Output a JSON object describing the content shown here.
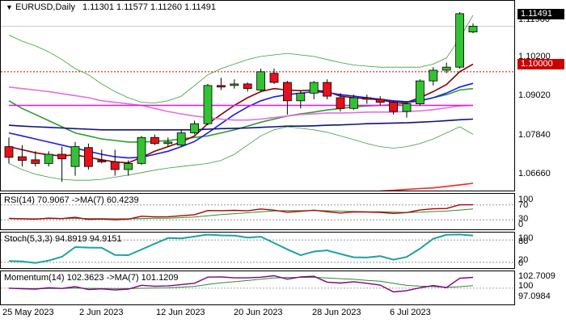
{
  "main": {
    "symbol": "EURUSD,Daily",
    "ohlc": "1.11301 1.11577 1.11260 1.11491",
    "price_axis": [
      "1.11980",
      "1.10200",
      "1.09020",
      "1.07840",
      "1.06660"
    ],
    "current_price": "1.11491",
    "level_price": "1.10000"
  },
  "rsi": {
    "label": "RSI(14) 70.9067  ->MA(7) 60.4239",
    "axis": [
      "100",
      "70",
      "30",
      "0"
    ]
  },
  "stoch": {
    "label": "Stoch(5,3,3) 94.8919 94.9151",
    "axis": [
      "100",
      "80",
      "20",
      "0"
    ]
  },
  "momentum": {
    "label": "Momentum(14) 102.3623  ->MA(7) 101.1209",
    "axis": [
      "102.7009",
      "100",
      "97.0984"
    ]
  },
  "dates": [
    "25 May 2023",
    "2 Jun 2023",
    "12 Jun 2023",
    "20 Jun 2023",
    "28 Jun 2023",
    "6 Jul 2023"
  ],
  "colors": {
    "up": "#33c233",
    "down": "#e8101a",
    "level": "#cc0000"
  },
  "chart_data": {
    "type": "candlestick",
    "title": "EURUSD,Daily",
    "ylim": [
      1.0606,
      1.1232
    ],
    "candles": [
      {
        "o": 1.0755,
        "h": 1.0785,
        "l": 1.07,
        "c": 1.072
      },
      {
        "o": 1.0722,
        "h": 1.076,
        "l": 1.069,
        "c": 1.071
      },
      {
        "o": 1.0712,
        "h": 1.074,
        "l": 1.069,
        "c": 1.07
      },
      {
        "o": 1.07,
        "h": 1.074,
        "l": 1.069,
        "c": 1.073
      },
      {
        "o": 1.073,
        "h": 1.0755,
        "l": 1.064,
        "c": 1.0715
      },
      {
        "o": 1.069,
        "h": 1.077,
        "l": 1.066,
        "c": 1.0755
      },
      {
        "o": 1.0752,
        "h": 1.0765,
        "l": 1.068,
        "c": 1.069
      },
      {
        "o": 1.071,
        "h": 1.0745,
        "l": 1.07,
        "c": 1.0705
      },
      {
        "o": 1.0705,
        "h": 1.0745,
        "l": 1.066,
        "c": 1.068
      },
      {
        "o": 1.068,
        "h": 1.071,
        "l": 1.066,
        "c": 1.07
      },
      {
        "o": 1.07,
        "h": 1.079,
        "l": 1.0695,
        "c": 1.0785
      },
      {
        "o": 1.0785,
        "h": 1.0795,
        "l": 1.076,
        "c": 1.0765
      },
      {
        "o": 1.0765,
        "h": 1.0785,
        "l": 1.0755,
        "c": 1.077
      },
      {
        "o": 1.076,
        "h": 1.081,
        "l": 1.0755,
        "c": 1.08
      },
      {
        "o": 1.08,
        "h": 1.084,
        "l": 1.0795,
        "c": 1.083
      },
      {
        "o": 1.083,
        "h": 1.096,
        "l": 1.0825,
        "c": 1.0955
      },
      {
        "o": 1.0955,
        "h": 1.098,
        "l": 1.094,
        "c": 1.095
      },
      {
        "o": 1.0955,
        "h": 1.0975,
        "l": 1.0945,
        "c": 1.096
      },
      {
        "o": 1.096,
        "h": 1.0965,
        "l": 1.0935,
        "c": 1.0945
      },
      {
        "o": 1.094,
        "h": 1.101,
        "l": 1.0935,
        "c": 1.1
      },
      {
        "o": 1.0995,
        "h": 1.101,
        "l": 1.096,
        "c": 1.0965
      },
      {
        "o": 1.0965,
        "h": 1.097,
        "l": 1.086,
        "c": 1.0905
      },
      {
        "o": 1.0905,
        "h": 1.094,
        "l": 1.088,
        "c": 1.093
      },
      {
        "o": 1.093,
        "h": 1.097,
        "l": 1.091,
        "c": 1.0965
      },
      {
        "o": 1.0965,
        "h": 1.0975,
        "l": 1.091,
        "c": 1.092
      },
      {
        "o": 1.0915,
        "h": 1.093,
        "l": 1.087,
        "c": 1.088
      },
      {
        "o": 1.088,
        "h": 1.0925,
        "l": 1.0875,
        "c": 1.0915
      },
      {
        "o": 1.0915,
        "h": 1.0925,
        "l": 1.0895,
        "c": 1.091
      },
      {
        "o": 1.091,
        "h": 1.092,
        "l": 1.089,
        "c": 1.09
      },
      {
        "o": 1.09,
        "h": 1.0905,
        "l": 1.086,
        "c": 1.087
      },
      {
        "o": 1.087,
        "h": 1.09,
        "l": 1.085,
        "c": 1.0895
      },
      {
        "o": 1.0895,
        "h": 1.0975,
        "l": 1.089,
        "c": 1.097
      },
      {
        "o": 1.097,
        "h": 1.1015,
        "l": 1.0955,
        "c": 1.1005
      },
      {
        "o": 1.1005,
        "h": 1.103,
        "l": 1.0995,
        "c": 1.1015
      },
      {
        "o": 1.1015,
        "h": 1.1195,
        "l": 1.101,
        "c": 1.119
      },
      {
        "o": 1.113,
        "h": 1.1158,
        "l": 1.1126,
        "c": 1.1149
      }
    ],
    "overlays": [
      {
        "color": "#2e9e2e",
        "values": [
          1.0905,
          1.088,
          1.086,
          1.084,
          1.082,
          1.08,
          1.079,
          1.078,
          1.0775,
          1.077,
          1.077,
          1.0772,
          1.0775,
          1.078,
          1.0785,
          1.079,
          1.08,
          1.081,
          1.0822,
          1.0835,
          1.0845,
          1.0855,
          1.0862,
          1.0868,
          1.0875,
          1.088,
          1.0885,
          1.0888,
          1.089,
          1.0892,
          1.0898,
          1.0905,
          1.0915,
          1.0925,
          1.094,
          1.0945
        ]
      },
      {
        "color": "#8b0000",
        "values": [
          1.0755,
          1.0745,
          1.0735,
          1.0728,
          1.0725,
          1.0728,
          1.072,
          1.0712,
          1.0705,
          1.0702,
          1.072,
          1.074,
          1.0755,
          1.077,
          1.079,
          1.083,
          1.086,
          1.089,
          1.0915,
          1.0935,
          1.0945,
          1.094,
          1.0938,
          1.094,
          1.0935,
          1.092,
          1.0915,
          1.0912,
          1.0908,
          1.09,
          1.09,
          1.0915,
          1.0935,
          1.0958,
          1.1,
          1.1025
        ]
      },
      {
        "color": "#1a1aee",
        "values": [
          1.08,
          1.079,
          1.078,
          1.077,
          1.076,
          1.075,
          1.074,
          1.073,
          1.0722,
          1.0718,
          1.072,
          1.073,
          1.074,
          1.0755,
          1.0772,
          1.08,
          1.083,
          1.086,
          1.0885,
          1.0905,
          1.0918,
          1.0925,
          1.093,
          1.0935,
          1.0932,
          1.0925,
          1.092,
          1.0915,
          1.091,
          1.0905,
          1.0902,
          1.0905,
          1.0915,
          1.093,
          1.095,
          1.0962
        ]
      },
      {
        "color": "#e070e0",
        "values": [
          1.095,
          1.0945,
          1.094,
          1.0935,
          1.0928,
          1.0922,
          1.0915,
          1.0905,
          1.09,
          1.0895,
          1.089,
          1.088,
          1.087,
          1.0862,
          1.0855,
          1.085,
          1.0845,
          1.0842,
          1.0842,
          1.0845,
          1.085,
          1.0855,
          1.086,
          1.0862,
          1.0865,
          1.0865,
          1.0866,
          1.0868,
          1.0868,
          1.0868,
          1.087,
          1.0872,
          1.0876,
          1.0882,
          1.0888,
          1.089
        ]
      },
      {
        "color": "#ee10ee",
        "values": [
          1.089,
          1.089,
          1.089,
          1.089,
          1.089,
          1.089,
          1.089,
          1.089,
          1.089,
          1.089,
          1.089,
          1.089,
          1.089,
          1.089,
          1.089,
          1.089,
          1.089,
          1.089,
          1.089,
          1.089,
          1.089,
          1.089,
          1.089,
          1.089,
          1.089,
          1.089,
          1.089,
          1.089,
          1.089,
          1.089,
          1.089,
          1.089,
          1.089,
          1.089,
          1.089,
          1.089
        ]
      },
      {
        "color": "#101080",
        "values": [
          1.0825,
          1.0822,
          1.082,
          1.0818,
          1.0816,
          1.0814,
          1.0812,
          1.081,
          1.081,
          1.081,
          1.081,
          1.081,
          1.081,
          1.081,
          1.081,
          1.0812,
          1.0814,
          1.0815,
          1.0816,
          1.0818,
          1.082,
          1.0822,
          1.0822,
          1.0823,
          1.0825,
          1.0826,
          1.0828,
          1.083,
          1.0831,
          1.0832,
          1.0833,
          1.0835,
          1.0837,
          1.084,
          1.0843,
          1.0845
        ]
      },
      {
        "color": "#ff2020",
        "values": [
          null,
          null,
          null,
          null,
          null,
          null,
          null,
          null,
          null,
          null,
          null,
          null,
          null,
          null,
          null,
          null,
          null,
          null,
          null,
          null,
          null,
          null,
          null,
          null,
          null,
          null,
          null,
          null,
          1.061,
          1.0612,
          1.0615,
          1.0618,
          1.062,
          1.0625,
          1.063,
          1.0635
        ]
      },
      {
        "color": "#3aa03a",
        "width": 0.8,
        "values": [
          1.112,
          1.11,
          1.1085,
          1.1065,
          1.104,
          1.101,
          1.099,
          1.096,
          1.0935,
          1.0915,
          1.09,
          1.0898,
          1.0905,
          1.092,
          1.0955,
          1.099,
          1.101,
          1.1025,
          1.104,
          1.105,
          1.1055,
          1.106,
          1.1055,
          1.105,
          1.104,
          1.103,
          1.1022,
          1.1018,
          1.1015,
          1.1015,
          1.1015,
          1.1015,
          1.1025,
          1.1045,
          1.111,
          1.1185
        ]
      },
      {
        "color": "#3aa03a",
        "width": 0.8,
        "values": [
          1.07,
          1.068,
          1.0665,
          1.0655,
          1.0648,
          1.0645,
          1.0645,
          1.0648,
          1.0655,
          1.0662,
          1.067,
          1.0678,
          1.0685,
          1.069,
          1.0695,
          1.07,
          1.071,
          1.073,
          1.076,
          1.079,
          1.081,
          1.082,
          1.0815,
          1.081,
          1.0802,
          1.079,
          1.0778,
          1.0765,
          1.0755,
          1.075,
          1.0755,
          1.0765,
          1.078,
          1.08,
          1.082,
          1.0795
        ]
      }
    ]
  }
}
